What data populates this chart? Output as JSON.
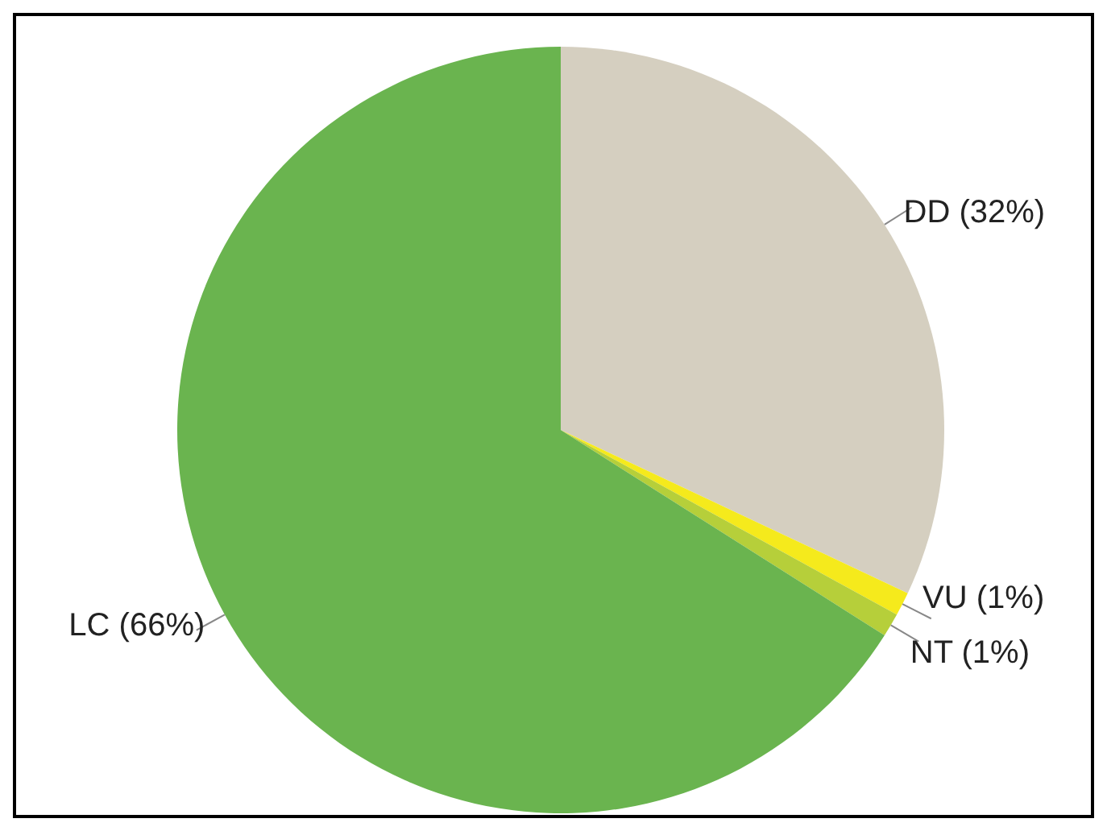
{
  "chart_data": {
    "type": "pie",
    "categories": [
      "DD",
      "VU",
      "NT",
      "LC"
    ],
    "values": [
      32,
      1,
      1,
      66
    ],
    "value_labels": [
      "(32%)",
      "(1%)",
      "(1%)",
      "(66%)"
    ],
    "colors": [
      "#d5cfc0",
      "#f5ea1c",
      "#b6cf3a",
      "#6ab44f"
    ],
    "legend": false
  }
}
